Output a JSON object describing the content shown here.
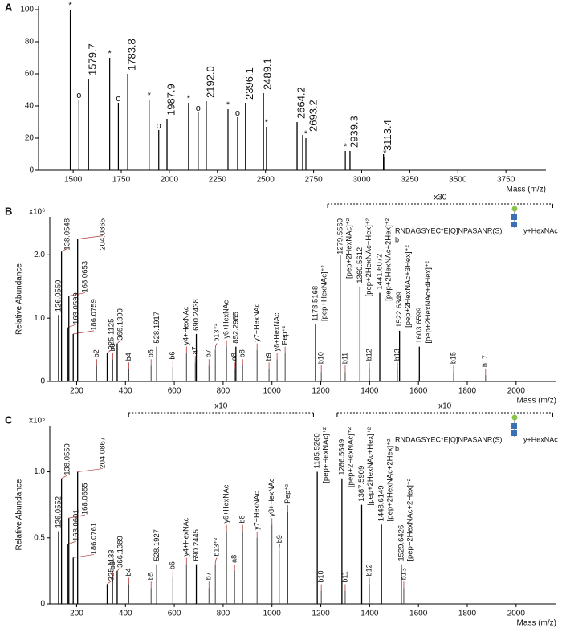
{
  "chart_data": [
    {
      "type": "spectrum",
      "panel_label": "A",
      "x_label": "Mass (m/z)",
      "xlim": [
        1320,
        3958
      ],
      "xticks": [
        1500,
        1750,
        2000,
        2250,
        2500,
        2750,
        3000,
        3250,
        3500,
        3750
      ],
      "ylim": [
        0,
        102
      ],
      "yticks": [
        0,
        20,
        40,
        60,
        80,
        100
      ],
      "color": "#000000",
      "peaks": {
        "x": [
          1579.7,
          1783.8,
          1987.9,
          2192.0,
          2396.1,
          2489.1,
          2664.2,
          2693.2,
          2939.3,
          3113.4
        ],
        "values": [
          57,
          60,
          32,
          43,
          42,
          48,
          30,
          22,
          12,
          10
        ],
        "labels": [
          "1579.7",
          "1783.8",
          "1987.9",
          "2192.0",
          "2396.1",
          "2489.1",
          "2664.2",
          "2693.2",
          "2939.3",
          "3113.4"
        ]
      },
      "starred": {
        "symbol": "*",
        "x": [
          1485,
          1690,
          1895,
          2100,
          2305,
          2505,
          2710,
          2915,
          3120
        ],
        "values": [
          100,
          70,
          44,
          42,
          38,
          27,
          20,
          12,
          8
        ]
      },
      "circled": {
        "symbol": "o",
        "x": [
          1530,
          1735,
          1945,
          2150,
          2355
        ],
        "values": [
          44,
          42,
          25,
          36,
          33
        ]
      }
    },
    {
      "type": "spectrum",
      "panel_label": "B",
      "x_label": "Mass (m/z)",
      "y_label": "Relative Abundance",
      "scale_label": "x10⁶",
      "xlim": [
        90,
        2165
      ],
      "xticks": [
        200,
        400,
        600,
        800,
        1000,
        1200,
        1400,
        1600,
        1800,
        2000
      ],
      "ylim": [
        0,
        2.6
      ],
      "yticks": [
        0,
        {
          "value": 1,
          "label": "1.0"
        },
        {
          "value": 2,
          "label": "2.0"
        }
      ],
      "color": "#000000",
      "fragment_color": "#b03a3a",
      "annotation_color": "#2b2b7a",
      "peaks": {
        "x": [
          126.055,
          138.0548,
          163.0599,
          168.0653,
          186.0759,
          204.0865,
          325.1125,
          366.139,
          528.1917,
          690.2438,
          852.2985,
          1178.5168,
          1279.556,
          1360.5612,
          1441.6072,
          1522.6349,
          1603.6599
        ],
        "values": [
          1.05,
          2.05,
          0.85,
          1.35,
          0.75,
          2.25,
          0.45,
          0.6,
          0.55,
          0.75,
          0.55,
          0.9,
          2.0,
          1.5,
          1.4,
          0.8,
          0.55
        ],
        "labels": [
          "126.0550",
          "138.0548",
          "163.0599",
          "168.0653",
          "186.0759",
          "204.0865",
          "325.1125",
          "366.1390",
          "528.1917",
          "690.2438",
          "852.2985",
          "1178.5168",
          "1279.5560",
          "1360.5612",
          "1441.6072",
          "1522.6349",
          "1603.6599"
        ],
        "annotations": [
          null,
          null,
          null,
          null,
          null,
          null,
          null,
          null,
          null,
          null,
          null,
          "[pep+HexNAc]⁺²",
          "[pep+2HexNAc]⁺²",
          "[pep+2HexNAc+Hex]⁺²",
          "[pep+2HexNAc+2Hex]⁺²",
          "[pep+2HexNAc+3Hex]⁺²",
          "[pep+2HexNAc+4Hex]⁺²"
        ]
      },
      "fragments": {
        "labels": [
          "b2",
          "b3",
          "b4",
          "b5",
          "b6",
          "y4+HexNAc",
          "a7",
          "b7",
          "b13⁺²",
          "y6+HexNAc",
          "a8",
          "b8",
          "y7+HexNAc",
          "b9",
          "y8+HexNAc",
          "Pep⁺²",
          "b10",
          "b11",
          "b12",
          "b13",
          "b15",
          "b17"
        ],
        "x": [
          282,
          348,
          414,
          505,
          594,
          650,
          686,
          742,
          768,
          814,
          847,
          880,
          939,
          988,
          1021,
          1054,
          1202,
          1300,
          1399,
          1514,
          1744,
          1875
        ],
        "values": [
          0.25,
          0.35,
          0.2,
          0.25,
          0.22,
          0.45,
          0.3,
          0.25,
          0.5,
          0.55,
          0.2,
          0.25,
          0.5,
          0.2,
          0.35,
          0.45,
          0.15,
          0.15,
          0.2,
          0.2,
          0.15,
          0.1
        ]
      },
      "zoom": [
        {
          "label": "x30",
          "range": [
            1228,
            2150
          ]
        }
      ],
      "sequence": "RNDAGSYEC*E[Q]NPASANR(S)",
      "sequence_ions": [
        "b",
        "y+HexNAc"
      ]
    },
    {
      "type": "spectrum",
      "panel_label": "C",
      "x_label": "Mass (m/z)",
      "y_label": "Relative Abundance",
      "scale_label": "x10⁵",
      "xlim": [
        90,
        2165
      ],
      "xticks": [
        200,
        400,
        600,
        800,
        1000,
        1200,
        1400,
        1600,
        1800,
        2000
      ],
      "ylim": [
        0,
        1.35
      ],
      "yticks": [
        0,
        0.5,
        {
          "value": 1,
          "label": "1.0"
        }
      ],
      "color": "#000000",
      "fragment_color": "#b03a3a",
      "annotation_color": "#2b2b7a",
      "peaks": {
        "x": [
          126.0552,
          138.055,
          163.0601,
          168.0655,
          186.0761,
          204.0867,
          325.1133,
          366.1389,
          528.1927,
          690.2445,
          1185.526,
          1286.5649,
          1367.5909,
          1448.6149,
          1529.6426
        ],
        "values": [
          0.55,
          0.95,
          0.45,
          0.65,
          0.35,
          1.0,
          0.15,
          0.25,
          0.3,
          0.3,
          1.0,
          0.95,
          0.75,
          0.6,
          0.3
        ],
        "labels": [
          "126.0552",
          "138.0550",
          "163.0601",
          "168.0655",
          "186.0761",
          "204.0867",
          "325.1133",
          "366.1389",
          "528.1927",
          "690.2445",
          "1185.5260",
          "1286.5649",
          "1367.5909",
          "1448.6149",
          "1529.6426"
        ],
        "annotations": [
          null,
          null,
          null,
          null,
          null,
          null,
          null,
          null,
          null,
          null,
          "[pep+HexNAc]⁺²",
          "[pep+2HexNAc]⁺²",
          "[pep+2HexNAc+Hex]⁺²",
          "[pep+2HexNAc+2Hex]⁺²",
          "[pep+2HexNAc+2Hex]⁺²"
        ]
      },
      "fragments": {
        "labels": [
          "b3",
          "b4",
          "b5",
          "b6",
          "y4+HexNAc",
          "b7",
          "b13⁺²",
          "y6+HexNAc",
          "a8",
          "b8",
          "y7+HexNAc",
          "y8+HexNAc",
          "b9",
          "Pep⁺²",
          "b10",
          "b11",
          "b12",
          "b13"
        ],
        "x": [
          348,
          414,
          505,
          594,
          650,
          742,
          768,
          814,
          847,
          880,
          939,
          1000,
          1030,
          1065,
          1202,
          1300,
          1399,
          1540
        ],
        "values": [
          0.2,
          0.15,
          0.12,
          0.2,
          0.3,
          0.12,
          0.3,
          0.55,
          0.25,
          0.55,
          0.5,
          0.6,
          0.4,
          0.7,
          0.1,
          0.1,
          0.15,
          0.12
        ]
      },
      "zoom": [
        {
          "label": "x10",
          "range": [
            413,
            1170
          ]
        },
        {
          "label": "x10",
          "range": [
            1267,
            2150
          ]
        }
      ],
      "sequence": "RNDAGSYEC*E[Q]NPASANR(S)",
      "sequence_ions": [
        "b",
        "y+HexNAc"
      ]
    }
  ]
}
